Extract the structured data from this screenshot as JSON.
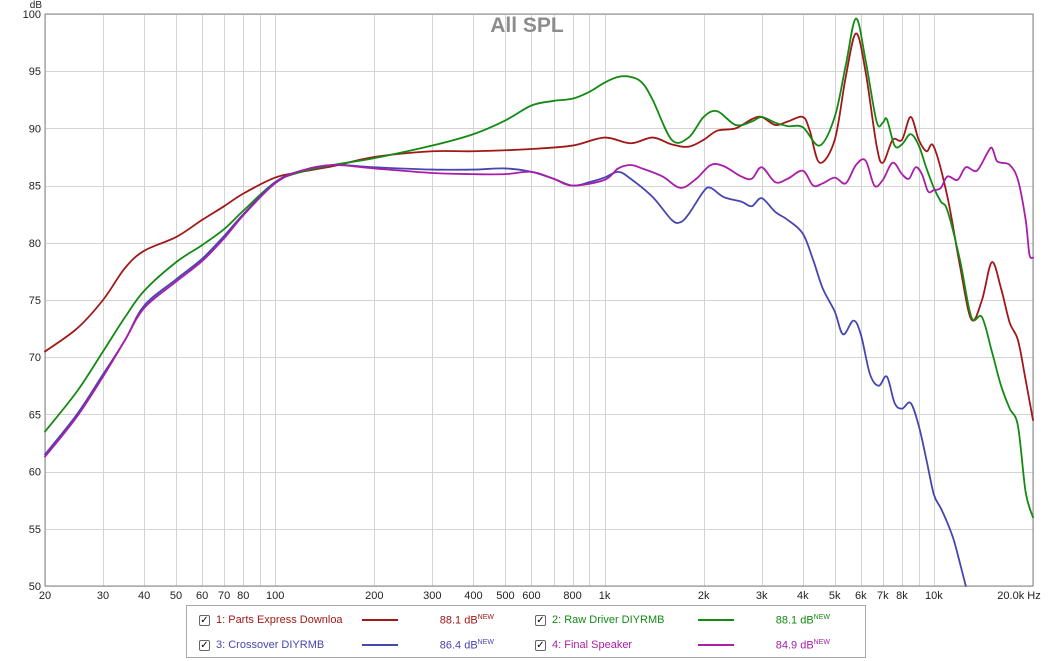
{
  "chart_data": {
    "type": "line",
    "title": "All SPL",
    "ylabel": "dB",
    "xlabel": "Hz",
    "xscale": "log",
    "xlim": [
      20,
      20000
    ],
    "ylim": [
      50,
      100
    ],
    "grid": true,
    "x_ticks": [
      {
        "v": 20,
        "label": "20"
      },
      {
        "v": 30,
        "label": "30"
      },
      {
        "v": 40,
        "label": "40"
      },
      {
        "v": 50,
        "label": "50"
      },
      {
        "v": 60,
        "label": "60"
      },
      {
        "v": 70,
        "label": "70"
      },
      {
        "v": 80,
        "label": "80"
      },
      {
        "v": 100,
        "label": "100"
      },
      {
        "v": 200,
        "label": "200"
      },
      {
        "v": 300,
        "label": "300"
      },
      {
        "v": 400,
        "label": "400"
      },
      {
        "v": 500,
        "label": "500"
      },
      {
        "v": 600,
        "label": "600"
      },
      {
        "v": 800,
        "label": "800"
      },
      {
        "v": 1000,
        "label": "1k"
      },
      {
        "v": 2000,
        "label": "2k"
      },
      {
        "v": 3000,
        "label": "3k"
      },
      {
        "v": 4000,
        "label": "4k"
      },
      {
        "v": 5000,
        "label": "5k"
      },
      {
        "v": 6000,
        "label": "6k"
      },
      {
        "v": 7000,
        "label": "7k"
      },
      {
        "v": 8000,
        "label": "8k"
      },
      {
        "v": 10000,
        "label": "10k"
      },
      {
        "v": 20000,
        "label": "20.0k Hz"
      }
    ],
    "y_ticks": [
      50,
      55,
      60,
      65,
      70,
      75,
      80,
      85,
      90,
      95,
      100
    ],
    "series": [
      {
        "name": "1: Parts Express Downloa",
        "color": "#a01818",
        "level": "88.1 dB",
        "points": [
          [
            20,
            70.5
          ],
          [
            25,
            72.5
          ],
          [
            30,
            75
          ],
          [
            35,
            77.8
          ],
          [
            40,
            79.3
          ],
          [
            50,
            80.5
          ],
          [
            60,
            82
          ],
          [
            70,
            83.2
          ],
          [
            80,
            84.3
          ],
          [
            100,
            85.7
          ],
          [
            120,
            86.2
          ],
          [
            150,
            86.7
          ],
          [
            200,
            87.5
          ],
          [
            300,
            88
          ],
          [
            400,
            88
          ],
          [
            600,
            88.2
          ],
          [
            800,
            88.5
          ],
          [
            1000,
            89.2
          ],
          [
            1200,
            88.7
          ],
          [
            1400,
            89.2
          ],
          [
            1600,
            88.6
          ],
          [
            1800,
            88.4
          ],
          [
            2000,
            89
          ],
          [
            2200,
            89.8
          ],
          [
            2500,
            90
          ],
          [
            2800,
            90.8
          ],
          [
            3000,
            91
          ],
          [
            3300,
            90.3
          ],
          [
            3600,
            90.6
          ],
          [
            4000,
            91
          ],
          [
            4200,
            89.8
          ],
          [
            4500,
            87
          ],
          [
            5000,
            89
          ],
          [
            5400,
            94.5
          ],
          [
            5800,
            98.3
          ],
          [
            6200,
            95
          ],
          [
            6700,
            88.5
          ],
          [
            7000,
            87
          ],
          [
            7500,
            89
          ],
          [
            8000,
            89
          ],
          [
            8500,
            91
          ],
          [
            9000,
            89
          ],
          [
            9500,
            88
          ],
          [
            10000,
            88.4
          ],
          [
            11000,
            84
          ],
          [
            12000,
            78
          ],
          [
            13000,
            73.3
          ],
          [
            14000,
            75
          ],
          [
            15000,
            78.3
          ],
          [
            16000,
            76
          ],
          [
            17000,
            73
          ],
          [
            18000,
            71.5
          ],
          [
            19000,
            68
          ],
          [
            20000,
            64.5
          ]
        ]
      },
      {
        "name": "2: Raw Driver DIYRMB",
        "color": "#138a13",
        "level": "88.1 dB",
        "points": [
          [
            20,
            63.5
          ],
          [
            25,
            67
          ],
          [
            30,
            70.5
          ],
          [
            35,
            73.5
          ],
          [
            40,
            75.8
          ],
          [
            50,
            78.3
          ],
          [
            60,
            79.8
          ],
          [
            70,
            81.2
          ],
          [
            80,
            82.8
          ],
          [
            100,
            85.3
          ],
          [
            120,
            86.2
          ],
          [
            150,
            86.8
          ],
          [
            200,
            87.4
          ],
          [
            300,
            88.5
          ],
          [
            400,
            89.5
          ],
          [
            500,
            90.7
          ],
          [
            600,
            92
          ],
          [
            700,
            92.4
          ],
          [
            800,
            92.6
          ],
          [
            900,
            93.2
          ],
          [
            1000,
            94
          ],
          [
            1100,
            94.5
          ],
          [
            1200,
            94.5
          ],
          [
            1300,
            94
          ],
          [
            1400,
            92.5
          ],
          [
            1600,
            89
          ],
          [
            1800,
            89.2
          ],
          [
            2000,
            91
          ],
          [
            2200,
            91.5
          ],
          [
            2500,
            90.3
          ],
          [
            2800,
            90.6
          ],
          [
            3000,
            91
          ],
          [
            3300,
            90.5
          ],
          [
            3600,
            90.2
          ],
          [
            4000,
            90.1
          ],
          [
            4500,
            88.5
          ],
          [
            5000,
            91
          ],
          [
            5400,
            95.5
          ],
          [
            5800,
            99.6
          ],
          [
            6200,
            96
          ],
          [
            6700,
            90.6
          ],
          [
            7000,
            90.5
          ],
          [
            7200,
            90.8
          ],
          [
            7600,
            88.5
          ],
          [
            8000,
            88.6
          ],
          [
            8500,
            89.5
          ],
          [
            9000,
            88.5
          ],
          [
            9500,
            86.5
          ],
          [
            10000,
            84.8
          ],
          [
            10500,
            83.6
          ],
          [
            11000,
            82.8
          ],
          [
            12000,
            78.5
          ],
          [
            13000,
            73.5
          ],
          [
            14000,
            73.5
          ],
          [
            15000,
            70.5
          ],
          [
            16000,
            67.5
          ],
          [
            17000,
            65.5
          ],
          [
            18000,
            64
          ],
          [
            19000,
            58.2
          ],
          [
            20000,
            56
          ]
        ]
      },
      {
        "name": "3: Crossover DIYRMB",
        "color": "#4646b0",
        "level": "86.4 dB",
        "points": [
          [
            20,
            61.5
          ],
          [
            25,
            65
          ],
          [
            30,
            68.5
          ],
          [
            35,
            71.5
          ],
          [
            40,
            74.5
          ],
          [
            50,
            76.8
          ],
          [
            60,
            78.6
          ],
          [
            70,
            80.6
          ],
          [
            80,
            82.5
          ],
          [
            100,
            85.3
          ],
          [
            120,
            86.3
          ],
          [
            150,
            86.8
          ],
          [
            200,
            86.6
          ],
          [
            300,
            86.4
          ],
          [
            400,
            86.4
          ],
          [
            500,
            86.5
          ],
          [
            600,
            86.2
          ],
          [
            700,
            85.6
          ],
          [
            800,
            85
          ],
          [
            900,
            85.3
          ],
          [
            1000,
            85.7
          ],
          [
            1100,
            86.2
          ],
          [
            1200,
            85.6
          ],
          [
            1400,
            84
          ],
          [
            1600,
            82
          ],
          [
            1700,
            81.8
          ],
          [
            1800,
            82.5
          ],
          [
            2000,
            84.5
          ],
          [
            2100,
            84.8
          ],
          [
            2300,
            84
          ],
          [
            2600,
            83.6
          ],
          [
            2800,
            83.2
          ],
          [
            3000,
            83.9
          ],
          [
            3300,
            82.7
          ],
          [
            3600,
            82
          ],
          [
            4000,
            80.8
          ],
          [
            4300,
            78.5
          ],
          [
            4600,
            76
          ],
          [
            5000,
            74
          ],
          [
            5300,
            72
          ],
          [
            5700,
            73.2
          ],
          [
            6000,
            72
          ],
          [
            6400,
            68.5
          ],
          [
            6800,
            67.5
          ],
          [
            7200,
            68.3
          ],
          [
            7600,
            66
          ],
          [
            8000,
            65.5
          ],
          [
            8500,
            66
          ],
          [
            9000,
            64
          ],
          [
            9500,
            61
          ],
          [
            10000,
            58
          ],
          [
            10500,
            56.8
          ],
          [
            11000,
            55.5
          ],
          [
            11500,
            54
          ],
          [
            12000,
            52
          ],
          [
            12500,
            50
          ]
        ]
      },
      {
        "name": "4: Final Speaker",
        "color": "#a81ea8",
        "level": "84.9 dB",
        "points": [
          [
            20,
            61.3
          ],
          [
            25,
            64.8
          ],
          [
            30,
            68.3
          ],
          [
            35,
            71.5
          ],
          [
            40,
            74.3
          ],
          [
            50,
            76.6
          ],
          [
            60,
            78.4
          ],
          [
            70,
            80.4
          ],
          [
            80,
            82.4
          ],
          [
            100,
            85.2
          ],
          [
            120,
            86.3
          ],
          [
            150,
            86.8
          ],
          [
            200,
            86.5
          ],
          [
            300,
            86.1
          ],
          [
            400,
            86
          ],
          [
            500,
            86
          ],
          [
            600,
            86.2
          ],
          [
            700,
            85.6
          ],
          [
            800,
            85
          ],
          [
            1000,
            85.5
          ],
          [
            1100,
            86.5
          ],
          [
            1200,
            86.8
          ],
          [
            1300,
            86.5
          ],
          [
            1500,
            85.8
          ],
          [
            1700,
            84.8
          ],
          [
            1900,
            85.6
          ],
          [
            2100,
            86.8
          ],
          [
            2300,
            86.7
          ],
          [
            2600,
            85.8
          ],
          [
            2800,
            85.6
          ],
          [
            3000,
            86.6
          ],
          [
            3300,
            85.3
          ],
          [
            3600,
            85.6
          ],
          [
            4000,
            86.3
          ],
          [
            4300,
            85
          ],
          [
            4600,
            85.2
          ],
          [
            5000,
            85.7
          ],
          [
            5400,
            85.2
          ],
          [
            5800,
            86.8
          ],
          [
            6200,
            87.2
          ],
          [
            6600,
            85
          ],
          [
            7000,
            85.5
          ],
          [
            7500,
            87
          ],
          [
            8000,
            86
          ],
          [
            8400,
            85.6
          ],
          [
            8800,
            86.6
          ],
          [
            9200,
            86
          ],
          [
            9600,
            84.5
          ],
          [
            10000,
            84.6
          ],
          [
            10500,
            84.8
          ],
          [
            11000,
            85.8
          ],
          [
            11800,
            85.5
          ],
          [
            12500,
            86.6
          ],
          [
            13500,
            86.3
          ],
          [
            14500,
            87.8
          ],
          [
            15000,
            88.3
          ],
          [
            15500,
            87.2
          ],
          [
            16000,
            87
          ],
          [
            17000,
            86.8
          ],
          [
            18000,
            85.5
          ],
          [
            19000,
            82
          ],
          [
            19500,
            79
          ],
          [
            20000,
            78.7
          ]
        ]
      }
    ]
  },
  "legend": {
    "check_mark": "✓",
    "new_tag": "NEW"
  }
}
